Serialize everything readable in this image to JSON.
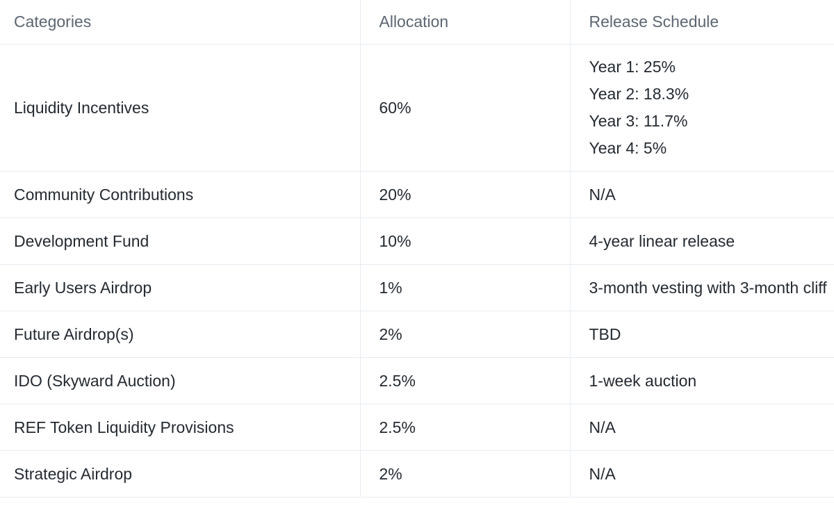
{
  "table": {
    "header": [
      "Categories",
      "Allocation",
      "Release Schedule"
    ],
    "rows": [
      [
        "Liquidity Incentives",
        "60%",
        [
          "Year 1: 25%",
          "Year 2: 18.3%",
          "Year 3: 11.7%",
          "Year 4: 5%"
        ]
      ],
      [
        "Community Contributions",
        "20%",
        "N/A"
      ],
      [
        "Development Fund",
        "10%",
        "4-year linear release"
      ],
      [
        "Early Users Airdrop",
        "1%",
        "3-month vesting with 3-month cliff"
      ],
      [
        "Future Airdrop(s)",
        "2%",
        "TBD"
      ],
      [
        "IDO (Skyward Auction)",
        "2.5%",
        "1-week auction"
      ],
      [
        "REF Token Liquidity Provisions",
        "2.5%",
        "N/A"
      ],
      [
        "Strategic Airdrop",
        "2%",
        "N/A"
      ]
    ]
  }
}
